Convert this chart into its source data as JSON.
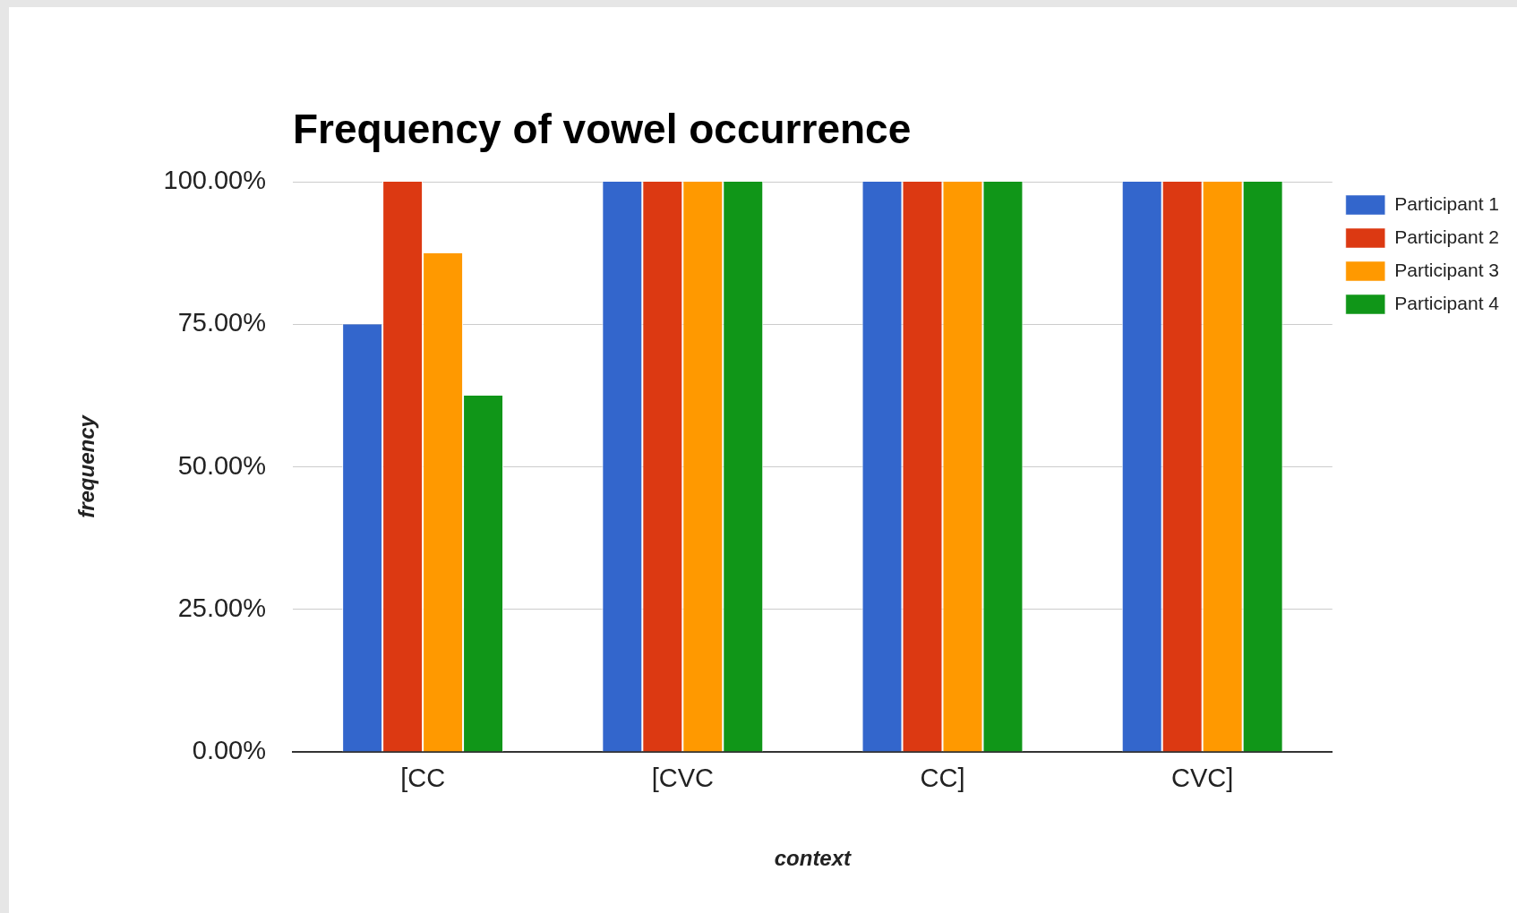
{
  "chart_data": {
    "type": "bar",
    "title": "Frequency of vowel occurrence",
    "xlabel": "context",
    "ylabel": "frequency",
    "categories": [
      "[CC",
      "[CVC",
      "CC]",
      "CVC]"
    ],
    "series": [
      {
        "name": "Participant 1",
        "color": "#3366cc",
        "values": [
          75,
          100,
          100,
          100
        ]
      },
      {
        "name": "Participant 2",
        "color": "#dc3912",
        "values": [
          100,
          100,
          100,
          100
        ]
      },
      {
        "name": "Participant 3",
        "color": "#ff9900",
        "values": [
          87.5,
          100,
          100,
          100
        ]
      },
      {
        "name": "Participant 4",
        "color": "#109618",
        "values": [
          62.5,
          100,
          100,
          100
        ]
      }
    ],
    "ylim": [
      0,
      100
    ],
    "yticks": [
      {
        "value": 0,
        "label": "0.00%"
      },
      {
        "value": 25,
        "label": "25.00%"
      },
      {
        "value": 50,
        "label": "50.00%"
      },
      {
        "value": 75,
        "label": "75.00%"
      },
      {
        "value": 100,
        "label": "100.00%"
      }
    ],
    "grid": "y",
    "legend": "top right"
  }
}
